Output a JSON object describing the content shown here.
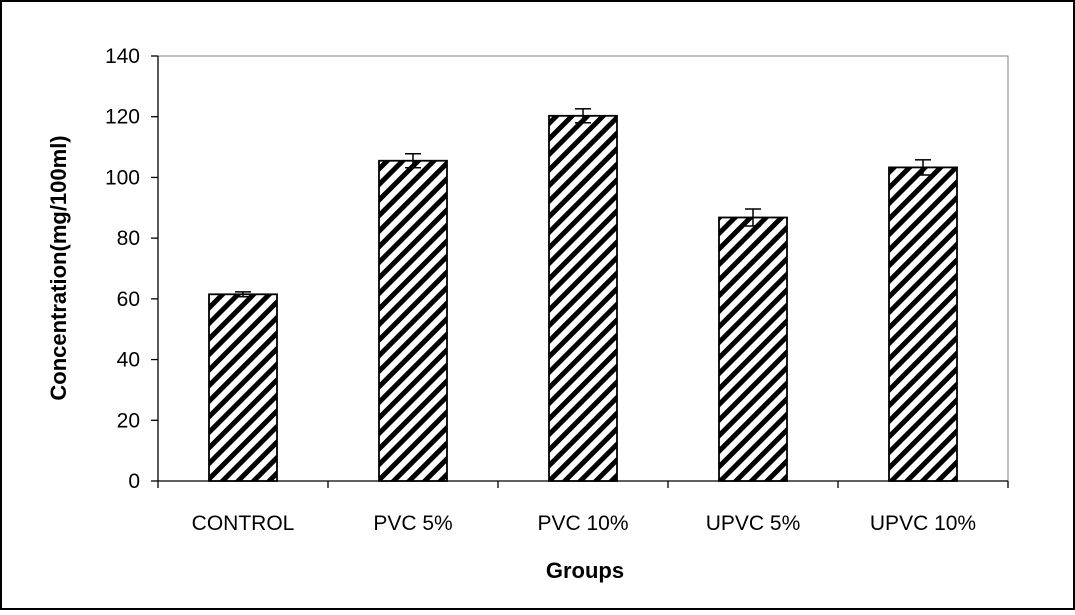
{
  "chart_data": {
    "type": "bar",
    "categories": [
      "CONTROL",
      "PVC 5%",
      "PVC 10%",
      "UPVC 5%",
      "UPVC 10%"
    ],
    "values": [
      61.5,
      105.5,
      120.3,
      86.8,
      103.3
    ],
    "error": [
      0.8,
      2.3,
      2.3,
      2.8,
      2.5
    ],
    "xlabel": "Groups",
    "ylabel": "Concentration(mg/100ml)",
    "ylim": [
      0,
      140
    ],
    "yticks": [
      "0",
      "20",
      "40",
      "60",
      "80",
      "100",
      "120",
      "140"
    ],
    "grid": false,
    "legend": "none",
    "bar_fill": "diagonal-hatch",
    "colors": {
      "bar_stroke": "#000000",
      "hatch": "#000000",
      "bar_background": "#ffffff",
      "plot_border": "#808080"
    }
  }
}
